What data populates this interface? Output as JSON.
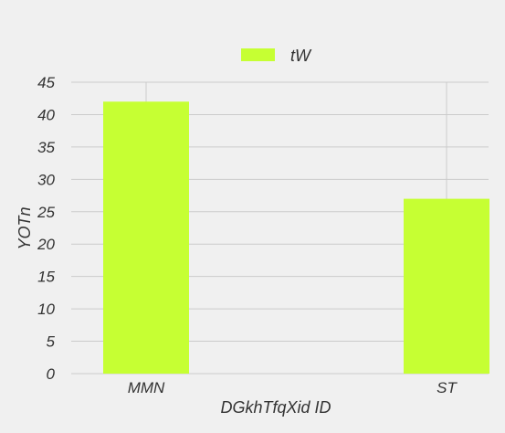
{
  "chart_data": {
    "type": "bar",
    "categories": [
      "MMN",
      "ST"
    ],
    "series": [
      {
        "name": "tW",
        "values": [
          42,
          27
        ],
        "color": "#c6ff33"
      }
    ],
    "xlabel": "DGkhTfqXid ID",
    "ylabel": "YOTn",
    "ylim": [
      0,
      45
    ],
    "yticks": [
      0,
      5,
      10,
      15,
      20,
      25,
      30,
      35,
      40,
      45
    ],
    "grid": true,
    "legend_position": "top-center",
    "background": "#f0f0f0",
    "grid_color": "#cbcbcb"
  }
}
